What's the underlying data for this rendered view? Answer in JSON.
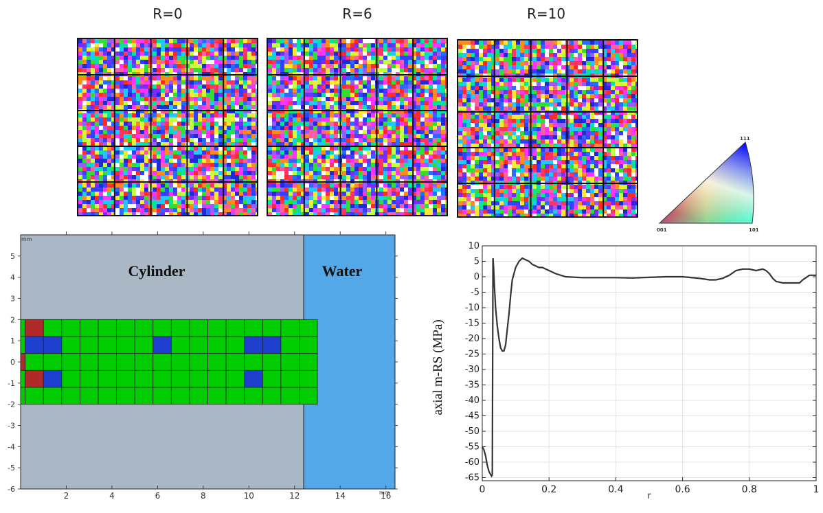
{
  "ebsd_maps": [
    {
      "label": "R=0"
    },
    {
      "label": "R=6"
    },
    {
      "label": "R=10"
    }
  ],
  "ipf_key": {
    "corner_001": "001",
    "corner_101": "101",
    "corner_111": "111"
  },
  "colors": {
    "cylinder": "#aab7c4",
    "water": "#55a8e8",
    "green_cell": "#00cc00",
    "blue_cell": "#1f3fcf",
    "red_cell": "#b02a2a",
    "line": "#333333"
  },
  "chart_data": [
    {
      "type": "heatmap",
      "regions": [
        {
          "name": "Cylinder",
          "x_range": [
            0,
            12.4
          ],
          "y_range": [
            -6,
            6
          ]
        },
        {
          "name": "Water",
          "x_range": [
            12.4,
            16.4
          ],
          "y_range": [
            -6,
            6
          ]
        }
      ],
      "x_unit": "mm",
      "y_unit": "mm",
      "xlim": [
        0,
        16.4
      ],
      "ylim": [
        -6,
        6
      ],
      "xticks": [
        2,
        4,
        6,
        8,
        10,
        12,
        14,
        16
      ],
      "yticks": [
        5,
        4,
        3,
        2,
        1,
        0,
        -1,
        -2,
        -3,
        -4,
        -5,
        -6
      ],
      "grid": {
        "x_start": 0,
        "x_end": 12.4,
        "y_start": -2,
        "y_end": 2,
        "first_column_width": 0.2,
        "cell_size": 0.8,
        "cells": [
          "BRRGGGGGGGGGGGGGG",
          "BBBGGGGBGGGGGBGGG",
          "RGGGGGGGGGGGGGGGG",
          "BRRBGGGGGGGGGGGGG",
          "BGGGGGGGGGGGGGGGG"
        ],
        "cells_note_ignore": ""
      }
    },
    {
      "type": "line",
      "title": "",
      "xlabel": "r",
      "ylabel": "axial m-RS (MPa)",
      "xlim": [
        0,
        1.0
      ],
      "ylim": [
        -66,
        10
      ],
      "xticks": [
        0,
        0.2,
        0.4,
        0.6,
        0.8,
        1
      ],
      "yticks": [
        10,
        5,
        0,
        -5,
        -10,
        -15,
        -20,
        -25,
        -30,
        -35,
        -40,
        -45,
        -50,
        -55,
        -60,
        -65
      ],
      "grid": true,
      "series": [
        {
          "x": [
            0,
            0.005,
            0.01,
            0.015,
            0.02,
            0.025,
            0.028,
            0.03,
            0.032,
            0.034,
            0.036,
            0.04,
            0.045,
            0.05,
            0.055,
            0.06,
            0.065,
            0.07,
            0.075,
            0.08,
            0.085,
            0.09,
            0.1,
            0.11,
            0.12,
            0.13,
            0.14,
            0.15,
            0.16,
            0.17,
            0.18,
            0.2,
            0.22,
            0.25,
            0.3,
            0.35,
            0.4,
            0.45,
            0.5,
            0.55,
            0.6,
            0.62,
            0.65,
            0.68,
            0.7,
            0.72,
            0.74,
            0.76,
            0.78,
            0.8,
            0.82,
            0.84,
            0.85,
            0.86,
            0.87,
            0.88,
            0.9,
            0.92,
            0.94,
            0.95,
            0.96,
            0.98,
            1.0
          ],
          "y": [
            -55,
            -56,
            -58,
            -61,
            -63,
            -64,
            -64.5,
            -64,
            6,
            3,
            -2,
            -10,
            -16,
            -20,
            -23,
            -24,
            -24,
            -22,
            -17,
            -12,
            -6,
            -1,
            3,
            5,
            6,
            5.5,
            5,
            4,
            3.5,
            3,
            3,
            2,
            1,
            0,
            -0.3,
            -0.3,
            -0.3,
            -0.4,
            -0.2,
            0,
            0,
            -0.2,
            -0.5,
            -1,
            -1,
            -0.5,
            0.5,
            2,
            2.5,
            2.5,
            2,
            2.5,
            2,
            1,
            -0.5,
            -1.5,
            -2,
            -2,
            -2,
            -2,
            -1,
            0.5,
            0.5
          ]
        }
      ]
    }
  ],
  "region_labels": {
    "cylinder": "Cylinder",
    "water": "Water"
  },
  "units": {
    "corner_top": "mm",
    "corner_bottom": "mm"
  }
}
